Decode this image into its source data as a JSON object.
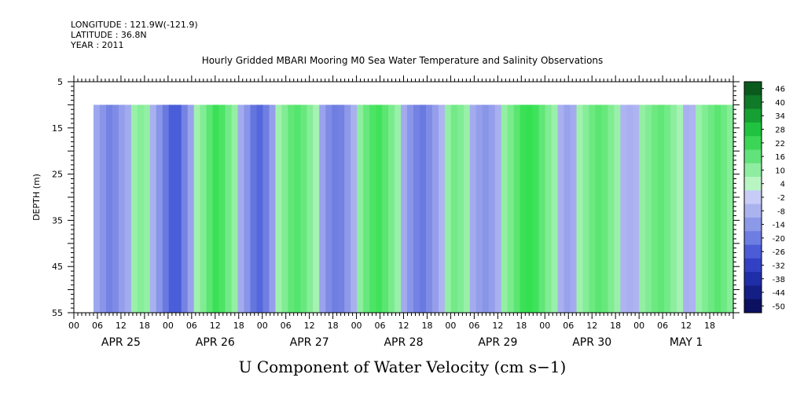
{
  "header": {
    "longitude": "LONGITUDE : 121.9W(-121.9)",
    "latitude": "LATITUDE : 36.8N",
    "year": "YEAR : 2011"
  },
  "chart_data": {
    "type": "heatmap",
    "title": "Hourly Gridded MBARI Mooring M0 Sea Water Temperature and Salinity Observations",
    "xlabel": "U Component of Water Velocity (cm s−1)",
    "ylabel": "DEPTH (m)",
    "ylim": [
      5,
      55
    ],
    "y_inverted": true,
    "y_ticks": [
      5,
      15,
      25,
      35,
      45,
      55
    ],
    "x_start_hour": 0,
    "x_end_hour": 168,
    "x_hour_ticks": [
      "00",
      "06",
      "12",
      "18",
      "00",
      "06",
      "12",
      "18",
      "00",
      "06",
      "12",
      "18",
      "00",
      "06",
      "12",
      "18",
      "00",
      "06",
      "12",
      "18",
      "00",
      "06",
      "12",
      "18",
      "00",
      "06",
      "12",
      "18"
    ],
    "x_day_labels": [
      "APR 25",
      "APR 26",
      "APR 27",
      "APR 28",
      "APR 29",
      "APR 30",
      "MAY  1"
    ],
    "data_start_hour": 5,
    "data_end_hour": 168,
    "data_top_depth": 10,
    "colorbar_labels": [
      "46",
      "40",
      "34",
      "28",
      "22",
      "16",
      "10",
      "4",
      "-2",
      "-8",
      "-14",
      "-20",
      "-26",
      "-32",
      "-38",
      "-44",
      "-50"
    ],
    "colorbar_colors": [
      "#0a5a1e",
      "#0f7a28",
      "#16a033",
      "#1fc340",
      "#3bd655",
      "#62e27a",
      "#8eeda0",
      "#b8f5c3",
      "#c6ccf5",
      "#aab3ee",
      "#8c98e8",
      "#6d7de2",
      "#4c5cd6",
      "#3241c4",
      "#1f2ea8",
      "#141f86",
      "#0b1160"
    ],
    "colormap_positive": "#34e050",
    "colormap_light_positive": "#a6f2b4",
    "colormap_light_negative": "#b3b9f2",
    "colormap_negative": "#4a5ed9",
    "column_values": [
      -4,
      -8,
      -12,
      -10,
      -6,
      -3,
      2,
      5,
      3,
      -2,
      -8,
      -14,
      -22,
      -20,
      -12,
      -5,
      1,
      6,
      12,
      17,
      14,
      8,
      3,
      -3,
      -8,
      -15,
      -18,
      -13,
      -6,
      1,
      6,
      11,
      13,
      10,
      5,
      0,
      -5,
      -10,
      -13,
      -12,
      -7,
      -2,
      4,
      10,
      14,
      16,
      12,
      7,
      2,
      -3,
      -8,
      -12,
      -14,
      -10,
      -6,
      -1,
      3,
      8,
      6,
      2,
      -3,
      -6,
      -8,
      -6,
      -2,
      3,
      7,
      12,
      17,
      19,
      16,
      11,
      6,
      2,
      -2,
      -5,
      -3,
      1,
      5,
      9,
      12,
      10,
      6,
      2,
      -1,
      -2,
      -1,
      3,
      6,
      9,
      11,
      8,
      4,
      0,
      -2,
      -1,
      2,
      6,
      9,
      12,
      9,
      5
    ]
  }
}
